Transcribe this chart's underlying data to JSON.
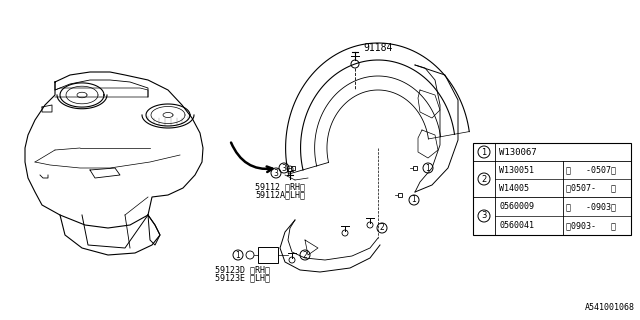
{
  "bg_color": "#ffffff",
  "part_number_bottom": "A541001068",
  "labels": {
    "part1": "59112 〈RH〉",
    "part1b": "59112A〈LH〉",
    "part2": "59123D 〈RH〉",
    "part2b": "59123E 〈LH〉",
    "part3": "91184"
  },
  "legend": {
    "row1_circle": "1",
    "row1_text": "W130067",
    "row2_circle": "2",
    "row2a_text": "W130051",
    "row2a_range": "〈   -0507〉",
    "row2b_text": "W14005",
    "row2b_range": "〈0507-   〉",
    "row3_circle": "3",
    "row3a_text": "0560009",
    "row3a_range": "〈   -0903〉",
    "row3b_text": "0560041",
    "row3b_range": "〈0903-   〉"
  }
}
